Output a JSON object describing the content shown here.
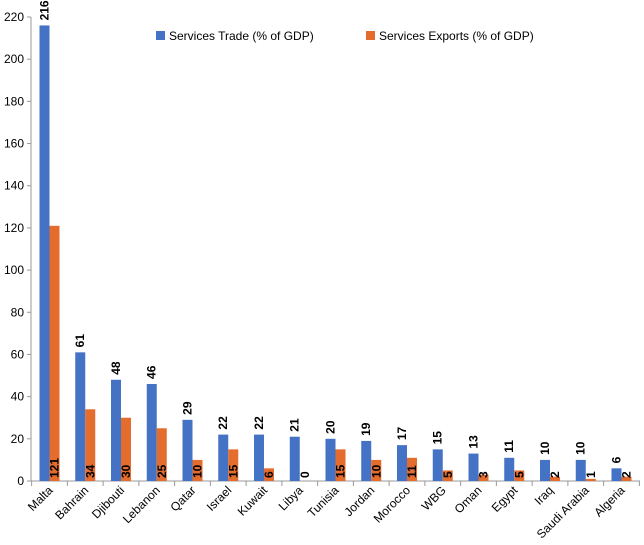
{
  "chart_data": {
    "type": "bar",
    "categories": [
      "Malta",
      "Bahrain",
      "Djibouti",
      "Lebanon",
      "Qatar",
      "Israel",
      "Kuwait",
      "Libya",
      "Tunisia",
      "Jordan",
      "Morocco",
      "WBG",
      "Oman",
      "Egypt",
      "Iraq",
      "Saudi Arabia",
      "Algeria"
    ],
    "series": [
      {
        "name": "Services Trade (% of GDP)",
        "color": "#4472C4",
        "values": [
          216,
          61,
          48,
          46,
          29,
          22,
          22,
          21,
          20,
          19,
          17,
          15,
          13,
          11,
          10,
          10,
          6
        ]
      },
      {
        "name": "Services Exports (% of GDP)",
        "color": "#E46C2C",
        "values": [
          121,
          34,
          30,
          25,
          10,
          15,
          6,
          0,
          15,
          10,
          11,
          5,
          3,
          5,
          2,
          1,
          2
        ]
      }
    ],
    "ylim": [
      0,
      220
    ],
    "yticks": [
      0,
      20,
      40,
      60,
      80,
      100,
      120,
      140,
      160,
      180,
      200,
      220
    ],
    "grid": false,
    "legend": "top-center"
  }
}
